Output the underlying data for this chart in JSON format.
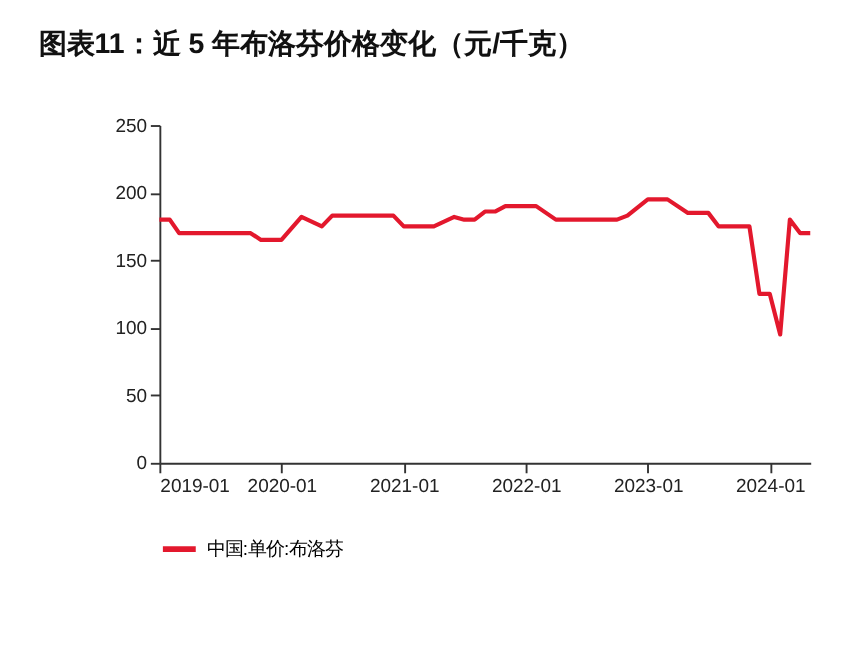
{
  "chart_data": {
    "type": "line",
    "title": "图表11：近 5 年布洛芬价格变化（元/千克）",
    "x": [
      "2019-01",
      "2019-02",
      "2019-03",
      "2019-10",
      "2019-11",
      "2020-01",
      "2020-03",
      "2020-05",
      "2020-06",
      "2020-12",
      "2021-01",
      "2021-04",
      "2021-06",
      "2021-07",
      "2021-08",
      "2021-09",
      "2021-10",
      "2021-11",
      "2022-02",
      "2022-04",
      "2022-10",
      "2022-11",
      "2023-01",
      "2023-03",
      "2023-05",
      "2023-07",
      "2023-08",
      "2023-11",
      "2023-12",
      "2024-01",
      "2024-02",
      "2024-03",
      "2024-04",
      "2024-05"
    ],
    "series": [
      {
        "name": "中国:单价:布洛芬",
        "color": "#e3182d",
        "values": [
          180,
          180,
          170,
          170,
          165,
          165,
          182,
          175,
          183,
          183,
          175,
          175,
          182,
          180,
          180,
          186,
          186,
          190,
          190,
          180,
          180,
          183,
          195,
          195,
          185,
          185,
          175,
          175,
          125,
          125,
          95,
          180,
          170,
          170
        ]
      }
    ],
    "xlim": [
      "2019-01",
      "2024-05"
    ],
    "xticks": [
      "2019-01",
      "2020-01",
      "2021-01",
      "2022-01",
      "2023-01",
      "2024-01"
    ],
    "ylim": [
      0,
      250
    ],
    "yticks": [
      0,
      50,
      100,
      150,
      200,
      250
    ],
    "grid": false,
    "legend": "bottom",
    "marker": "none",
    "line_style": "solid"
  }
}
